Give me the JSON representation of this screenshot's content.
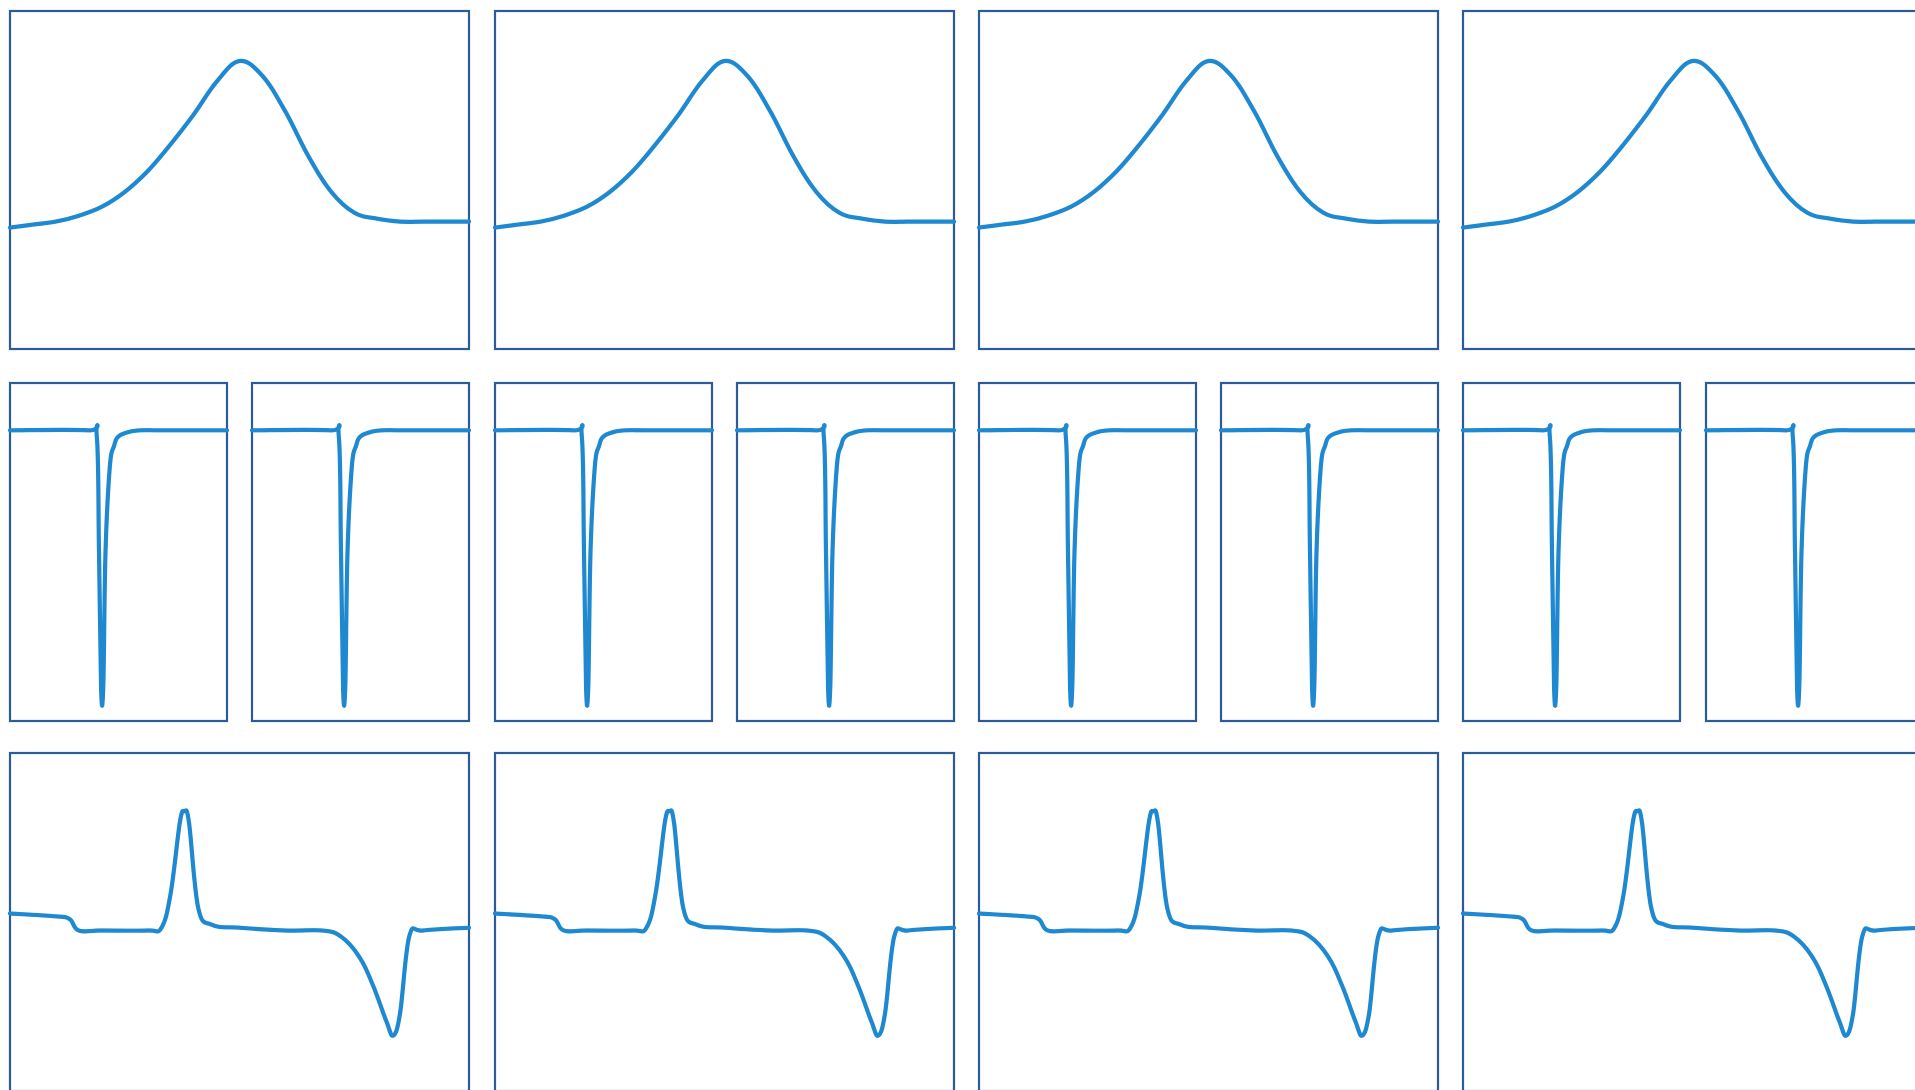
{
  "colors": {
    "frame": "#2c5a9b",
    "line": "#1e88d0",
    "background": "#ffffff"
  },
  "chart_data": [
    {
      "row": 1,
      "type": "line",
      "panels": 4,
      "panel_series": "broad-peak",
      "grid": false,
      "axes_labels": false,
      "ylim": [
        0,
        1
      ],
      "x": [
        0,
        0.05,
        0.1,
        0.15,
        0.2,
        0.25,
        0.3,
        0.35,
        0.4,
        0.45,
        0.5,
        0.55,
        0.6,
        0.65,
        0.7,
        0.75,
        0.8,
        0.85,
        0.9,
        0.95,
        1
      ],
      "y": [
        0.34,
        0.35,
        0.36,
        0.38,
        0.41,
        0.46,
        0.53,
        0.62,
        0.72,
        0.83,
        0.9,
        0.85,
        0.73,
        0.58,
        0.46,
        0.39,
        0.37,
        0.36,
        0.36,
        0.36,
        0.36
      ]
    },
    {
      "row": 2,
      "type": "line",
      "panels": 8,
      "panel_series": "sharp-dip",
      "grid": false,
      "axes_labels": false,
      "ylim": [
        0,
        1
      ],
      "x": [
        0,
        0.36,
        0.4,
        0.41,
        0.42,
        0.43,
        0.44,
        0.46,
        0.48,
        0.5,
        0.55,
        0.6,
        0.7,
        1
      ],
      "y": [
        0.9,
        0.9,
        0.88,
        0.5,
        0.05,
        0.06,
        0.5,
        0.78,
        0.85,
        0.88,
        0.895,
        0.9,
        0.9,
        0.9
      ]
    },
    {
      "row": 3,
      "type": "line",
      "panels": 4,
      "panel_series": "peak-then-dip",
      "grid": false,
      "axes_labels": false,
      "ylim": [
        0,
        1
      ],
      "x": [
        0,
        0.1,
        0.13,
        0.15,
        0.2,
        0.3,
        0.33,
        0.35,
        0.37,
        0.38,
        0.39,
        0.41,
        0.44,
        0.5,
        0.6,
        0.68,
        0.72,
        0.76,
        0.79,
        0.82,
        0.835,
        0.85,
        0.87,
        0.9,
        1
      ],
      "y": [
        0.53,
        0.52,
        0.51,
        0.47,
        0.47,
        0.47,
        0.48,
        0.6,
        0.85,
        0.89,
        0.85,
        0.55,
        0.49,
        0.48,
        0.47,
        0.47,
        0.45,
        0.38,
        0.28,
        0.15,
        0.1,
        0.18,
        0.45,
        0.47,
        0.48
      ]
    }
  ]
}
